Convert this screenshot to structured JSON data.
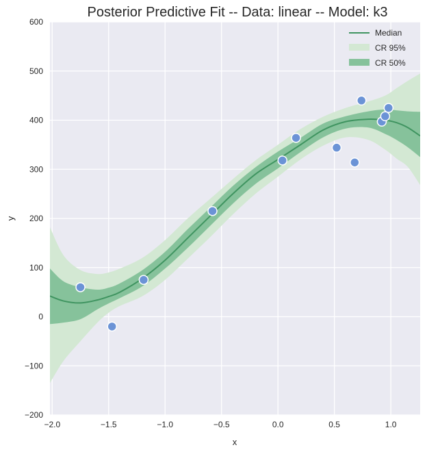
{
  "chart_data": {
    "type": "line",
    "title": "Posterior Predictive Fit -- Data: linear -- Model: k3",
    "xlabel": "x",
    "ylabel": "y",
    "xlim": [
      -2.02,
      1.26
    ],
    "ylim": [
      -200,
      600
    ],
    "xticks": [
      -2.0,
      -1.5,
      -1.0,
      -0.5,
      0.0,
      0.5,
      1.0
    ],
    "xtick_labels": [
      "−2.0",
      "−1.5",
      "−1.0",
      "−0.5",
      "0.0",
      "0.5",
      "1.0"
    ],
    "yticks": [
      -200,
      -100,
      0,
      100,
      200,
      300,
      400,
      500,
      600
    ],
    "ytick_labels": [
      "−200",
      "−100",
      "0",
      "100",
      "200",
      "300",
      "400",
      "500",
      "600"
    ],
    "grid": true,
    "legend": {
      "position": "top-right",
      "entries": [
        "Median",
        "CR 95%",
        "CR 50%"
      ]
    },
    "colors": {
      "median": "#3f9460",
      "cr95": "#d3e8d3",
      "cr50": "#86c29b",
      "points": "#6b93d6",
      "background": "#eaeaf2",
      "grid": "#ffffff"
    },
    "curve": {
      "x": [
        -2.02,
        -1.9,
        -1.75,
        -1.6,
        -1.5,
        -1.4,
        -1.2,
        -1.0,
        -0.8,
        -0.6,
        -0.4,
        -0.2,
        0.0,
        0.2,
        0.4,
        0.6,
        0.8,
        0.95,
        1.05,
        1.15,
        1.26
      ],
      "median": [
        42,
        32,
        28,
        34,
        41,
        50,
        78,
        115,
        160,
        205,
        250,
        290,
        320,
        350,
        380,
        397,
        402,
        400,
        395,
        385,
        368
      ],
      "cr50_low": [
        -15,
        -12,
        -5,
        15,
        27,
        38,
        62,
        98,
        140,
        185,
        230,
        270,
        302,
        335,
        365,
        383,
        385,
        372,
        360,
        345,
        325
      ],
      "cr50_high": [
        98,
        72,
        60,
        55,
        59,
        68,
        95,
        132,
        178,
        222,
        266,
        304,
        336,
        364,
        393,
        408,
        418,
        422,
        420,
        418,
        417
      ],
      "cr95_low": [
        -135,
        -90,
        -50,
        -12,
        8,
        22,
        42,
        75,
        118,
        162,
        208,
        250,
        285,
        320,
        348,
        365,
        360,
        340,
        322,
        305,
        268
      ],
      "cr95_high": [
        182,
        125,
        95,
        87,
        90,
        98,
        120,
        156,
        200,
        240,
        280,
        318,
        350,
        382,
        407,
        425,
        438,
        450,
        465,
        480,
        495
      ]
    },
    "points": {
      "x": [
        -1.75,
        -1.47,
        -1.19,
        -0.58,
        0.04,
        0.16,
        0.52,
        0.68,
        0.74,
        0.92,
        0.95,
        0.98
      ],
      "y": [
        60,
        -20,
        75,
        215,
        318,
        364,
        344,
        314,
        440,
        397,
        408,
        425
      ]
    }
  }
}
